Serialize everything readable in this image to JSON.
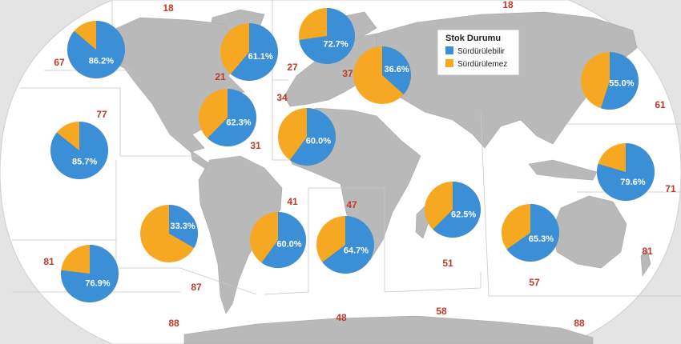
{
  "colors": {
    "sustainable": "#3a8fd6",
    "unsustainable": "#f7a823",
    "ocean": "#ffffff",
    "land": "#b9b9b9",
    "zone_label": "#c0392b",
    "background": "#e4e4e4"
  },
  "legend": {
    "title": "Stok Durumu",
    "items": [
      {
        "label": "Sürdürülebilir",
        "color": "#3a8fd6"
      },
      {
        "label": "Sürdürülemez",
        "color": "#f7a823"
      }
    ]
  },
  "zones": [
    "18",
    "18",
    "67",
    "21",
    "27",
    "37",
    "61",
    "77",
    "34",
    "31",
    "71",
    "41",
    "47",
    "81",
    "51",
    "87",
    "57",
    "81",
    "88",
    "48",
    "58",
    "88"
  ],
  "chart_data": {
    "type": "pie",
    "series": [
      {
        "name": "Sürdürülebilir",
        "color": "#3a8fd6"
      },
      {
        "name": "Sürdürülemez",
        "color": "#f7a823"
      }
    ],
    "pies": [
      {
        "zone": "67",
        "sustainable_pct": 86.2,
        "label": "86.2%"
      },
      {
        "zone": "21",
        "sustainable_pct": 61.1,
        "label": "61.1%"
      },
      {
        "zone": "27",
        "sustainable_pct": 72.7,
        "label": "72.7%"
      },
      {
        "zone": "37",
        "sustainable_pct": 36.6,
        "label": "36.6%"
      },
      {
        "zone": "61",
        "sustainable_pct": 55.0,
        "label": "55.0%"
      },
      {
        "zone": "77",
        "sustainable_pct": 85.7,
        "label": "85.7%"
      },
      {
        "zone": "31",
        "sustainable_pct": 62.3,
        "label": "62.3%"
      },
      {
        "zone": "34",
        "sustainable_pct": 60.0,
        "label": "60.0%"
      },
      {
        "zone": "71",
        "sustainable_pct": 79.6,
        "label": "79.6%"
      },
      {
        "zone": "87",
        "sustainable_pct": 33.3,
        "label": "33.3%"
      },
      {
        "zone": "41",
        "sustainable_pct": 60.0,
        "label": "60.0%"
      },
      {
        "zone": "47",
        "sustainable_pct": 64.7,
        "label": "64.7%"
      },
      {
        "zone": "51",
        "sustainable_pct": 62.5,
        "label": "62.5%"
      },
      {
        "zone": "57",
        "sustainable_pct": 65.3,
        "label": "65.3%"
      },
      {
        "zone": "81",
        "sustainable_pct": 76.9,
        "label": "76.9%"
      }
    ]
  }
}
